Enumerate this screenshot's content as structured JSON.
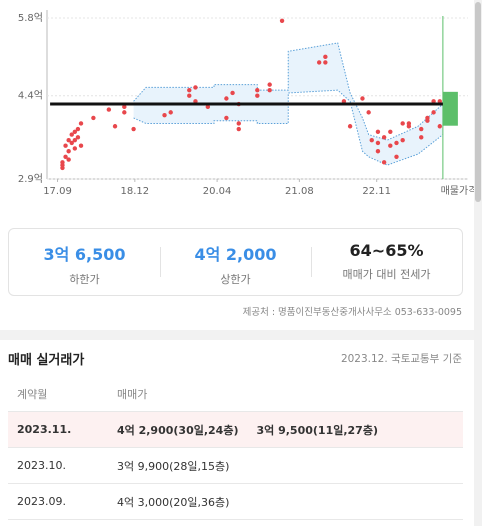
{
  "chart_data": {
    "type": "scatter",
    "color": "#e8474c",
    "yticks": [
      {
        "value": 5.8,
        "label": "5.8억"
      },
      {
        "value": 4.4,
        "label": "4.4억"
      },
      {
        "value": 2.9,
        "label": "2.9억"
      }
    ],
    "ylim": [
      2.9,
      5.8
    ],
    "xlim": [
      2017.5,
      2024.5
    ],
    "xticks": [
      {
        "value": 2017.67,
        "label": "17.09"
      },
      {
        "value": 2018.92,
        "label": "18.12"
      },
      {
        "value": 2020.25,
        "label": "20.04"
      },
      {
        "value": 2021.58,
        "label": "21.08"
      },
      {
        "value": 2022.83,
        "label": "22.11"
      }
    ],
    "x": [
      2017.75,
      2017.75,
      2017.75,
      2017.8,
      2017.8,
      2017.85,
      2017.85,
      2017.85,
      2017.9,
      2017.9,
      2017.95,
      2017.95,
      2017.95,
      2018.0,
      2018.0,
      2018.05,
      2018.05,
      2018.25,
      2018.5,
      2018.6,
      2018.75,
      2018.75,
      2018.9,
      2019.4,
      2019.5,
      2019.8,
      2019.8,
      2019.9,
      2019.9,
      2020.1,
      2020.4,
      2020.4,
      2020.5,
      2020.6,
      2020.6,
      2020.6,
      2020.9,
      2020.9,
      2021.1,
      2021.1,
      2021.3,
      2021.9,
      2022.0,
      2022.0,
      2022.3,
      2022.4,
      2022.6,
      2022.7,
      2022.75,
      2022.85,
      2022.85,
      2022.85,
      2022.95,
      2022.95,
      2023.05,
      2023.05,
      2023.15,
      2023.15,
      2023.25,
      2023.25,
      2023.35,
      2023.35,
      2023.55,
      2023.55,
      2023.65,
      2023.65,
      2023.75,
      2023.75,
      2023.85,
      2023.85
    ],
    "values": [
      3.2,
      3.15,
      3.1,
      3.3,
      3.5,
      3.6,
      3.4,
      3.25,
      3.7,
      3.55,
      3.75,
      3.6,
      3.45,
      3.8,
      3.65,
      3.9,
      3.5,
      4.0,
      4.15,
      3.85,
      4.1,
      4.2,
      3.8,
      4.05,
      4.1,
      4.4,
      4.5,
      4.55,
      4.3,
      4.2,
      4.35,
      4.0,
      4.45,
      3.9,
      3.8,
      4.25,
      4.5,
      4.4,
      4.6,
      4.5,
      5.75,
      5.0,
      5.1,
      5.0,
      4.3,
      3.85,
      4.35,
      4.1,
      3.6,
      3.55,
      3.75,
      3.4,
      3.65,
      3.2,
      3.75,
      3.5,
      3.55,
      3.3,
      3.9,
      3.6,
      3.85,
      3.9,
      3.8,
      3.65,
      3.95,
      4.0,
      4.3,
      4.1,
      3.85,
      4.3
    ],
    "band": {
      "color": "#5aa0d8",
      "x": [
        2018.9,
        2019.1,
        2020.2,
        2020.2,
        2020.9,
        2020.9,
        2021.4,
        2021.4,
        2022.2,
        2022.4,
        2022.6,
        2022.7,
        2023.0,
        2023.5,
        2023.9
      ],
      "upper": [
        4.3,
        4.55,
        4.55,
        4.6,
        4.6,
        4.5,
        4.5,
        5.2,
        5.35,
        4.45,
        4.0,
        3.7,
        3.6,
        3.85,
        4.25
      ],
      "lower": [
        4.0,
        3.9,
        3.9,
        3.95,
        3.95,
        3.9,
        3.9,
        4.45,
        4.5,
        4.3,
        3.4,
        3.3,
        3.15,
        3.35,
        3.7
      ]
    },
    "reference": {
      "value": 4.25,
      "x": [
        2017.55,
        2023.9
      ]
    },
    "listing": {
      "label": "매물가격",
      "x": 2023.9,
      "range": [
        3.86,
        4.47
      ],
      "color": "#5cbf6a"
    }
  },
  "summary": [
    {
      "value": "3억 6,500",
      "label": "하한가"
    },
    {
      "value": "4억 2,000",
      "label": "상한가"
    },
    {
      "value": "64~65%",
      "label": "매매가 대비 전세가"
    }
  ],
  "source": "제공처 : 명품이진부동산중개사사무소 053-633-0095",
  "trades": {
    "title": "매매 실거래가",
    "note": "2023.12. 국토교통부 기준",
    "headers": [
      "계약월",
      "매매가"
    ],
    "rows": [
      {
        "month": "2023.11.",
        "prices": [
          "4억 2,900(30일,24층)",
          "3억 9,500(11일,27층)"
        ]
      },
      {
        "month": "2023.10.",
        "prices": [
          "3억 9,900(28일,15층)"
        ]
      },
      {
        "month": "2023.09.",
        "prices": [
          "4억 3,000(20일,36층)"
        ]
      }
    ]
  }
}
